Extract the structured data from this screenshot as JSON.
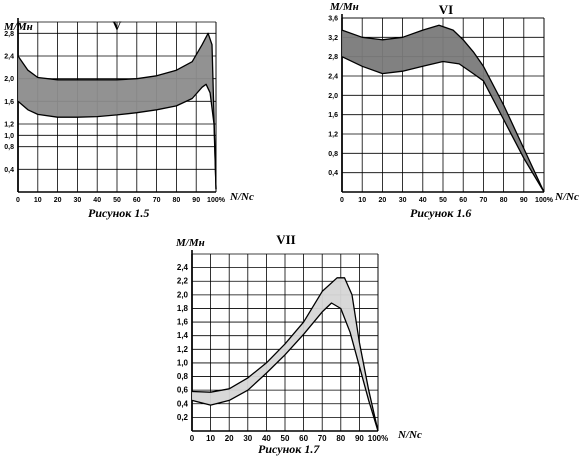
{
  "chart_data": [
    {
      "type": "area",
      "title": "V",
      "ylabel": "M/Mн",
      "xlabel": "N/Nc",
      "caption": "Рисунок 1.5",
      "x_ticks": [
        "0",
        "10",
        "20",
        "30",
        "40",
        "50",
        "60",
        "70",
        "80",
        "90",
        "100%"
      ],
      "y_ticks": [
        "0,4",
        "0,8",
        "1,0",
        "1,2",
        "1,6",
        "2,0",
        "2,4",
        "2,8"
      ],
      "xlim": [
        0,
        100
      ],
      "ylim": [
        0,
        3.0
      ],
      "band_fill": "#8c8c8c",
      "series": [
        {
          "values": [
            [
              0,
              2.4
            ],
            [
              5,
              2.15
            ],
            [
              10,
              2.02
            ],
            [
              20,
              1.98
            ],
            [
              30,
              1.98
            ],
            [
              40,
              1.98
            ],
            [
              50,
              1.98
            ],
            [
              60,
              2.0
            ],
            [
              70,
              2.05
            ],
            [
              80,
              2.15
            ],
            [
              88,
              2.3
            ],
            [
              93,
              2.6
            ],
            [
              96,
              2.8
            ],
            [
              98,
              2.6
            ],
            [
              100,
              0.05
            ]
          ]
        },
        {
          "values": [
            [
              0,
              1.6
            ],
            [
              5,
              1.45
            ],
            [
              10,
              1.37
            ],
            [
              20,
              1.32
            ],
            [
              30,
              1.32
            ],
            [
              40,
              1.33
            ],
            [
              50,
              1.36
            ],
            [
              60,
              1.4
            ],
            [
              70,
              1.45
            ],
            [
              80,
              1.52
            ],
            [
              88,
              1.65
            ],
            [
              93,
              1.85
            ],
            [
              95,
              1.9
            ],
            [
              97,
              1.75
            ],
            [
              99,
              1.2
            ],
            [
              100,
              0.05
            ]
          ]
        }
      ]
    },
    {
      "type": "area",
      "title": "VI",
      "ylabel": "M/Mн",
      "xlabel": "N/Nc",
      "caption": "Рисунок 1.6",
      "x_ticks": [
        "0",
        "10",
        "20",
        "30",
        "40",
        "50",
        "60",
        "70",
        "80",
        "90",
        "100%"
      ],
      "y_ticks": [
        "0,4",
        "0,8",
        "1,2",
        "1,6",
        "2,0",
        "2,4",
        "2,8",
        "3,2",
        "3,6"
      ],
      "xlim": [
        0,
        100
      ],
      "ylim": [
        0,
        3.6
      ],
      "band_fill": "#7a7a7a",
      "series": [
        {
          "values": [
            [
              0,
              3.35
            ],
            [
              10,
              3.2
            ],
            [
              20,
              3.15
            ],
            [
              30,
              3.2
            ],
            [
              40,
              3.35
            ],
            [
              48,
              3.45
            ],
            [
              55,
              3.35
            ],
            [
              60,
              3.15
            ],
            [
              65,
              2.9
            ],
            [
              70,
              2.6
            ],
            [
              80,
              1.8
            ],
            [
              90,
              0.9
            ],
            [
              100,
              0.0
            ]
          ]
        },
        {
          "values": [
            [
              0,
              2.8
            ],
            [
              10,
              2.6
            ],
            [
              20,
              2.45
            ],
            [
              30,
              2.5
            ],
            [
              40,
              2.6
            ],
            [
              50,
              2.7
            ],
            [
              58,
              2.65
            ],
            [
              65,
              2.45
            ],
            [
              70,
              2.3
            ],
            [
              80,
              1.5
            ],
            [
              90,
              0.7
            ],
            [
              100,
              0.0
            ]
          ]
        }
      ]
    },
    {
      "type": "area",
      "title": "VII",
      "ylabel": "M/Mн",
      "xlabel": "N/Nc",
      "caption": "Рисунок 1.7",
      "x_ticks": [
        "0",
        "10",
        "20",
        "30",
        "40",
        "50",
        "60",
        "70",
        "80",
        "90",
        "100%"
      ],
      "y_ticks": [
        "0,2",
        "0,4",
        "0,6",
        "0,8",
        "1,0",
        "1,2",
        "1,4",
        "1,6",
        "1,8",
        "2,0",
        "2,2",
        "2,4"
      ],
      "xlim": [
        0,
        100
      ],
      "ylim": [
        0,
        2.6
      ],
      "band_fill": "#d6d6d6",
      "series": [
        {
          "values": [
            [
              0,
              0.58
            ],
            [
              10,
              0.57
            ],
            [
              20,
              0.62
            ],
            [
              30,
              0.78
            ],
            [
              40,
              1.0
            ],
            [
              50,
              1.28
            ],
            [
              60,
              1.6
            ],
            [
              70,
              2.05
            ],
            [
              78,
              2.25
            ],
            [
              82,
              2.25
            ],
            [
              86,
              2.0
            ],
            [
              90,
              1.3
            ],
            [
              95,
              0.6
            ],
            [
              100,
              0.0
            ]
          ]
        },
        {
          "values": [
            [
              0,
              0.45
            ],
            [
              10,
              0.38
            ],
            [
              20,
              0.45
            ],
            [
              30,
              0.6
            ],
            [
              40,
              0.85
            ],
            [
              50,
              1.12
            ],
            [
              60,
              1.42
            ],
            [
              70,
              1.75
            ],
            [
              75,
              1.88
            ],
            [
              80,
              1.8
            ],
            [
              85,
              1.45
            ],
            [
              90,
              0.95
            ],
            [
              95,
              0.45
            ],
            [
              100,
              0.0
            ]
          ]
        }
      ]
    }
  ]
}
